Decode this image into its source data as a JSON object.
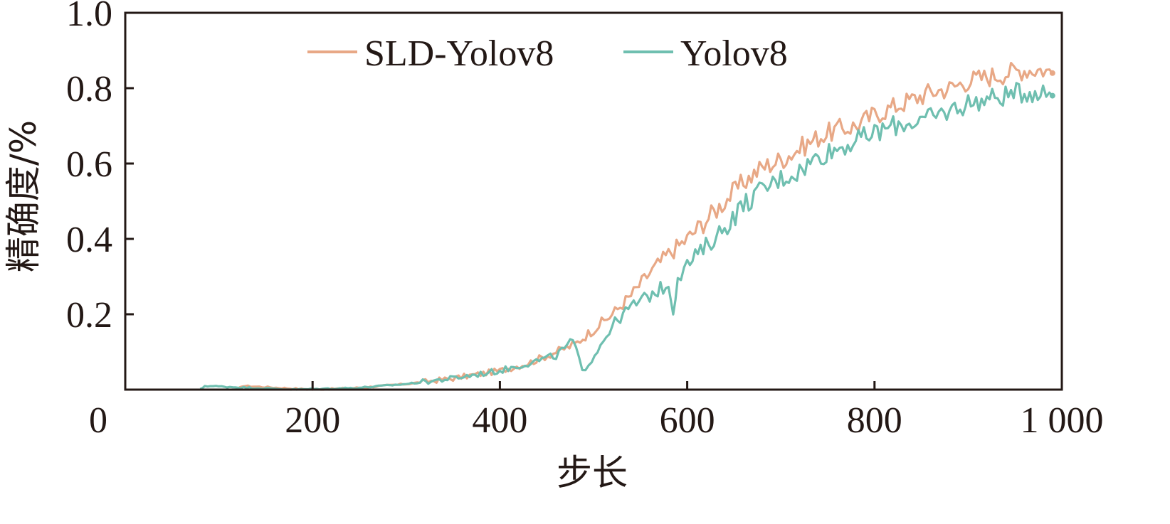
{
  "chart_data": {
    "type": "line",
    "title": "",
    "xlabel": "步长",
    "ylabel": "精确度/%",
    "xlim": [
      0,
      1000
    ],
    "ylim": [
      0,
      1.0
    ],
    "x_ticks": [
      {
        "value": 0,
        "label": "0"
      },
      {
        "value": 200,
        "label": "200"
      },
      {
        "value": 400,
        "label": "400"
      },
      {
        "value": 600,
        "label": "600"
      },
      {
        "value": 800,
        "label": "800"
      },
      {
        "value": 1000,
        "label": "1 000"
      }
    ],
    "y_ticks": [
      {
        "value": 0.2,
        "label": "0.2"
      },
      {
        "value": 0.4,
        "label": "0.4"
      },
      {
        "value": 0.6,
        "label": "0.6"
      },
      {
        "value": 0.8,
        "label": "0.8"
      },
      {
        "value": 1.0,
        "label": "1.0"
      }
    ],
    "grid": false,
    "legend_position": "top-center",
    "series": [
      {
        "name": "SLD-Yolov8",
        "color": "#e8a886",
        "x": [
          120,
          125,
          200,
          250,
          300,
          350,
          400,
          430,
          460,
          480,
          500,
          520,
          540,
          560,
          580,
          600,
          620,
          640,
          660,
          680,
          700,
          720,
          740,
          760,
          780,
          800,
          820,
          840,
          860,
          880,
          900,
          920,
          940,
          960,
          980,
          990
        ],
        "y": [
          0.0,
          0.01,
          0.0,
          0.005,
          0.015,
          0.03,
          0.05,
          0.07,
          0.1,
          0.12,
          0.16,
          0.2,
          0.25,
          0.31,
          0.36,
          0.4,
          0.45,
          0.5,
          0.55,
          0.59,
          0.61,
          0.64,
          0.67,
          0.69,
          0.7,
          0.73,
          0.75,
          0.77,
          0.79,
          0.8,
          0.82,
          0.83,
          0.84,
          0.85,
          0.85,
          0.84
        ]
      },
      {
        "name": "Yolov8",
        "color": "#6fbfb0",
        "x": [
          80,
          85,
          180,
          250,
          300,
          350,
          400,
          430,
          460,
          478,
          488,
          498,
          520,
          540,
          560,
          580,
          585,
          590,
          600,
          620,
          640,
          660,
          680,
          700,
          720,
          740,
          760,
          780,
          800,
          820,
          840,
          860,
          880,
          900,
          920,
          940,
          960,
          980,
          990
        ],
        "y": [
          0.0,
          0.01,
          0.0,
          0.005,
          0.015,
          0.03,
          0.05,
          0.07,
          0.09,
          0.13,
          0.05,
          0.08,
          0.17,
          0.22,
          0.25,
          0.28,
          0.21,
          0.3,
          0.33,
          0.38,
          0.43,
          0.49,
          0.53,
          0.56,
          0.58,
          0.62,
          0.64,
          0.66,
          0.68,
          0.7,
          0.71,
          0.72,
          0.74,
          0.76,
          0.77,
          0.78,
          0.79,
          0.79,
          0.78
        ]
      }
    ]
  }
}
